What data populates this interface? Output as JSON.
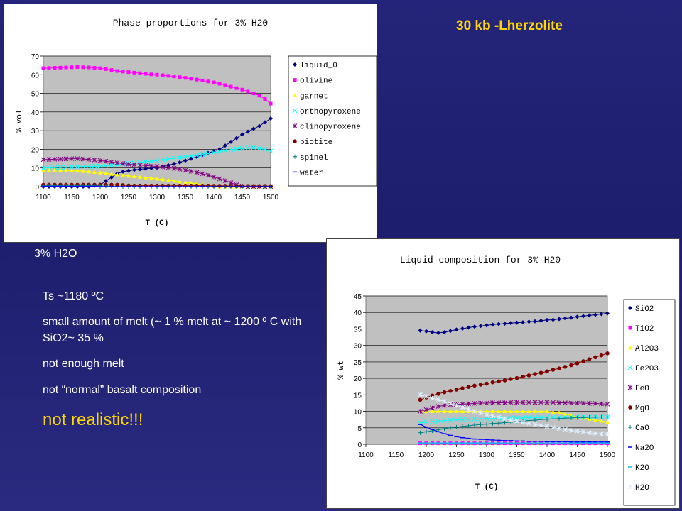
{
  "slide": {
    "title": "30 kb -Lherzolite",
    "notes_heading": "3% H2O",
    "bullets": [
      "Ts ~1180 ºC",
      "small amount of melt (~ 1 % melt at ~ 1200 º C with SiO2~ 35 %",
      "not enough melt",
      "not “normal” basalt composition"
    ],
    "conclusion": "not realistic!!!",
    "bullet_glyph": "",
    "bullet_color": "#ffffff",
    "conclusion_color": "#ffd700",
    "title_color": "#ffd700",
    "background_color": "#24247a"
  },
  "chart_data": [
    {
      "type": "line",
      "title": "Phase proportions for 3% H20",
      "xlabel": "T (C)",
      "ylabel": "% vol",
      "xlim": [
        1100,
        1500
      ],
      "ylim": [
        0,
        70
      ],
      "xticks": [
        1100,
        1150,
        1200,
        1250,
        1300,
        1350,
        1400,
        1450,
        1500
      ],
      "yticks": [
        0,
        10,
        20,
        30,
        40,
        50,
        60,
        70
      ],
      "grid": true,
      "legend_position": "right",
      "x": [
        1100,
        1110,
        1120,
        1130,
        1140,
        1150,
        1160,
        1170,
        1180,
        1190,
        1200,
        1210,
        1220,
        1230,
        1240,
        1250,
        1260,
        1270,
        1280,
        1290,
        1300,
        1310,
        1320,
        1330,
        1340,
        1350,
        1360,
        1370,
        1380,
        1390,
        1400,
        1410,
        1420,
        1430,
        1440,
        1450,
        1460,
        1470,
        1480,
        1490,
        1500
      ],
      "series": [
        {
          "name": "liquid_0",
          "color": "#000080",
          "marker": "diamond",
          "values": [
            0,
            0,
            0,
            0,
            0,
            0,
            0,
            0,
            0,
            0.5,
            1,
            3,
            5,
            7,
            8,
            8.5,
            9,
            9.3,
            9.6,
            9.9,
            10.2,
            10.8,
            11.5,
            12.2,
            13,
            14,
            15,
            16,
            17,
            18,
            19,
            20,
            22,
            24,
            26,
            28,
            29.5,
            31,
            32.5,
            34.5,
            36.5
          ]
        },
        {
          "name": "olivine",
          "color": "#ff00ff",
          "marker": "square",
          "values": [
            63.5,
            63.6,
            63.7,
            63.8,
            63.9,
            64,
            64.1,
            64,
            63.9,
            63.7,
            63.5,
            63,
            62.5,
            62,
            61.7,
            61.4,
            61.1,
            60.8,
            60.5,
            60.2,
            60,
            59.7,
            59.4,
            59.1,
            58.7,
            58.3,
            57.9,
            57.4,
            56.9,
            56.4,
            55.9,
            55.2,
            54.4,
            53.6,
            52.8,
            52,
            51,
            50,
            48.8,
            47,
            44.5
          ]
        },
        {
          "name": "garnet",
          "color": "#ffff00",
          "marker": "triangle",
          "values": [
            9,
            9,
            9,
            8.8,
            8.7,
            8.6,
            8.5,
            8.3,
            8.1,
            7.8,
            7.5,
            7.2,
            6.8,
            6.5,
            6.1,
            5.8,
            5.5,
            5.2,
            4.9,
            4.6,
            4.2,
            3.9,
            3.5,
            3.1,
            2.7,
            2.3,
            1.9,
            1.5,
            1.1,
            0.7,
            0.3,
            0,
            0,
            0,
            0,
            0,
            0,
            0,
            0,
            0,
            0
          ]
        },
        {
          "name": "orthopyroxene",
          "color": "#00ffff",
          "marker": "x",
          "values": [
            10,
            10.1,
            10.2,
            10.3,
            10.4,
            10.5,
            10.6,
            10.7,
            10.8,
            10.9,
            11,
            11.2,
            11.5,
            11.8,
            12.1,
            12.4,
            12.7,
            13,
            13.3,
            13.6,
            14,
            14.4,
            14.8,
            15.2,
            15.6,
            16,
            16.4,
            16.8,
            17.3,
            17.8,
            18.3,
            18.8,
            19.3,
            19.8,
            20.2,
            20.5,
            20.8,
            21,
            20.5,
            20,
            19
          ]
        },
        {
          "name": "clinopyroxene",
          "color": "#800080",
          "marker": "star",
          "values": [
            14.5,
            14.6,
            14.7,
            14.8,
            14.9,
            15,
            15,
            14.8,
            14.6,
            14.3,
            14,
            13.6,
            13.2,
            12.8,
            12.4,
            12,
            11.8,
            11.5,
            11.3,
            11.1,
            10.8,
            10.5,
            10.2,
            9.8,
            9.3,
            8.8,
            8.2,
            7.6,
            6.9,
            6.1,
            5.2,
            4.2,
            3.2,
            2.1,
            1,
            0.3,
            0,
            0,
            0,
            0,
            0
          ]
        },
        {
          "name": "biotite",
          "color": "#800000",
          "marker": "circle",
          "values": [
            1,
            1,
            1,
            1,
            1,
            1,
            1,
            1,
            1,
            1,
            1,
            1,
            1,
            1,
            0.8,
            0.6,
            0.5,
            0.5,
            0.5,
            0.5,
            0.5,
            0.5,
            0.5,
            0.5,
            0.5,
            0.5,
            0.5,
            0.5,
            0.5,
            0.5,
            0.4,
            0.4,
            0.4,
            0.4,
            0.3,
            0.3,
            0.3,
            0.3,
            0.3,
            0.3,
            0.3
          ]
        },
        {
          "name": "spinel",
          "color": "#008080",
          "marker": "plus",
          "values": [
            0.5,
            0.5,
            0.5,
            0.5,
            0.5,
            0.5,
            0.5,
            0.5,
            0.5,
            0.5,
            0.4,
            0.3,
            0.2,
            0.1,
            0,
            0,
            0,
            0,
            0,
            0,
            0,
            0,
            0,
            0,
            0,
            0,
            0,
            0,
            0,
            0,
            0,
            0,
            0,
            0,
            0,
            0,
            0,
            0,
            0,
            0,
            0
          ]
        },
        {
          "name": "water",
          "color": "#0000ff",
          "marker": "dash",
          "values": [
            0.2,
            0.2,
            0.2,
            0.2,
            0.2,
            0.2,
            0.2,
            0.2,
            0.2,
            0.2,
            0,
            0,
            0,
            0,
            0,
            0,
            0,
            0,
            0,
            0,
            0,
            0,
            0,
            0,
            0,
            0,
            0,
            0,
            0,
            0,
            0,
            0,
            0,
            0,
            0,
            0,
            0,
            0,
            0,
            0,
            0
          ]
        }
      ]
    },
    {
      "type": "line",
      "title": "Liquid composition for 3% H20",
      "xlabel": "T (C)",
      "ylabel": "% wt",
      "xlim": [
        1100,
        1500
      ],
      "ylim": [
        0,
        45
      ],
      "xticks": [
        1100,
        1150,
        1200,
        1250,
        1300,
        1350,
        1400,
        1450,
        1500
      ],
      "yticks": [
        0,
        5,
        10,
        15,
        20,
        25,
        30,
        35,
        40,
        45
      ],
      "grid": true,
      "legend_position": "right",
      "x": [
        1190,
        1200,
        1210,
        1220,
        1230,
        1240,
        1250,
        1260,
        1270,
        1280,
        1290,
        1300,
        1310,
        1320,
        1330,
        1340,
        1350,
        1360,
        1370,
        1380,
        1390,
        1400,
        1410,
        1420,
        1430,
        1440,
        1450,
        1460,
        1470,
        1480,
        1490,
        1500
      ],
      "series": [
        {
          "name": "SiO2",
          "color": "#000080",
          "marker": "diamond",
          "values": [
            34.5,
            34.3,
            34,
            33.8,
            34,
            34.4,
            34.8,
            35.1,
            35.4,
            35.7,
            35.9,
            36.1,
            36.3,
            36.5,
            36.6,
            36.8,
            36.9,
            37,
            37.2,
            37.3,
            37.5,
            37.7,
            37.8,
            38,
            38.2,
            38.4,
            38.7,
            38.9,
            39.1,
            39.3,
            39.5,
            39.7
          ]
        },
        {
          "name": "TiO2",
          "color": "#ff00ff",
          "marker": "square",
          "values": [
            0.3,
            0.3,
            0.3,
            0.3,
            0.3,
            0.3,
            0.3,
            0.3,
            0.3,
            0.3,
            0.3,
            0.3,
            0.3,
            0.3,
            0.3,
            0.3,
            0.3,
            0.3,
            0.3,
            0.3,
            0.3,
            0.3,
            0.3,
            0.3,
            0.3,
            0.3,
            0.3,
            0.3,
            0.3,
            0.3,
            0.3,
            0.3
          ]
        },
        {
          "name": "Al2O3",
          "color": "#ffff00",
          "marker": "triangle",
          "values": [
            10,
            10,
            10,
            10,
            10,
            10,
            10,
            10,
            10,
            10,
            10,
            10,
            10,
            10,
            10,
            10,
            10,
            10,
            10,
            10,
            10,
            10,
            9.8,
            9.6,
            9.2,
            8.8,
            8.3,
            8,
            7.7,
            7.4,
            7.1,
            6.8
          ]
        },
        {
          "name": "Fe2O3",
          "color": "#00ffff",
          "marker": "x",
          "values": [
            6.5,
            6.7,
            6.9,
            7,
            7.2,
            7.3,
            7.4,
            7.5,
            7.6,
            7.7,
            7.7,
            7.8,
            7.8,
            7.9,
            7.9,
            8,
            8,
            8,
            8.1,
            8.1,
            8.1,
            8.2,
            8.2,
            8.2,
            8.2,
            8.3,
            8.3,
            8.3,
            8.3,
            8.3,
            8.3,
            8.3
          ]
        },
        {
          "name": "FeO",
          "color": "#800080",
          "marker": "star",
          "values": [
            10,
            10.5,
            11,
            11.5,
            11.8,
            12,
            12.1,
            12.2,
            12.3,
            12.4,
            12.5,
            12.5,
            12.6,
            12.6,
            12.6,
            12.7,
            12.7,
            12.7,
            12.7,
            12.7,
            12.7,
            12.7,
            12.7,
            12.6,
            12.6,
            12.5,
            12.5,
            12.5,
            12.4,
            12.4,
            12.3,
            12.2
          ]
        },
        {
          "name": "MgO",
          "color": "#800000",
          "marker": "circle",
          "values": [
            13.5,
            14.2,
            14.8,
            15.3,
            15.8,
            16.2,
            16.6,
            17,
            17.4,
            17.8,
            18.1,
            18.4,
            18.8,
            19.1,
            19.4,
            19.8,
            20.1,
            20.5,
            20.9,
            21.3,
            21.7,
            22.1,
            22.6,
            23,
            23.5,
            24,
            24.6,
            25.2,
            25.8,
            26.4,
            27,
            27.6
          ]
        },
        {
          "name": "CaO",
          "color": "#008080",
          "marker": "plus",
          "values": [
            3.5,
            3.8,
            4.1,
            4.4,
            4.7,
            5,
            5.2,
            5.4,
            5.6,
            5.8,
            6,
            6.1,
            6.3,
            6.4,
            6.6,
            6.7,
            6.9,
            7,
            7.2,
            7.3,
            7.5,
            7.6,
            7.7,
            7.8,
            7.9,
            8,
            8.1,
            8.1,
            8.2,
            8.2,
            8.3,
            8.3
          ]
        },
        {
          "name": "Na2O",
          "color": "#0000ff",
          "marker": "dash",
          "values": [
            6,
            5.2,
            4.5,
            3.8,
            3.2,
            2.7,
            2.3,
            2,
            1.8,
            1.6,
            1.5,
            1.4,
            1.3,
            1.2,
            1.1,
            1.1,
            1,
            1,
            0.9,
            0.9,
            0.9,
            0.8,
            0.8,
            0.8,
            0.8,
            0.7,
            0.7,
            0.7,
            0.7,
            0.7,
            0.7,
            0.7
          ]
        },
        {
          "name": "K2O",
          "color": "#00bfff",
          "marker": "dash",
          "values": [
            0.4,
            0.4,
            0.4,
            0.4,
            0.4,
            0.4,
            0.4,
            0.4,
            0.4,
            0.4,
            0.4,
            0.4,
            0.4,
            0.4,
            0.4,
            0.4,
            0.4,
            0.4,
            0.4,
            0.4,
            0.4,
            0.4,
            0.4,
            0.4,
            0.4,
            0.4,
            0.4,
            0.4,
            0.4,
            0.4,
            0.4,
            0.4
          ]
        },
        {
          "name": "H2O",
          "color": "#e0f0ff",
          "marker": "star",
          "values": [
            15,
            14.5,
            14,
            13.5,
            13,
            12.4,
            11.8,
            11.2,
            10.6,
            10,
            9.5,
            9,
            8.6,
            8.2,
            7.8,
            7.4,
            7,
            6.6,
            6.3,
            6,
            5.7,
            5.4,
            5.1,
            4.8,
            4.5,
            4.2,
            4,
            3.8,
            3.5,
            3.3,
            3.1,
            3
          ]
        }
      ]
    }
  ]
}
